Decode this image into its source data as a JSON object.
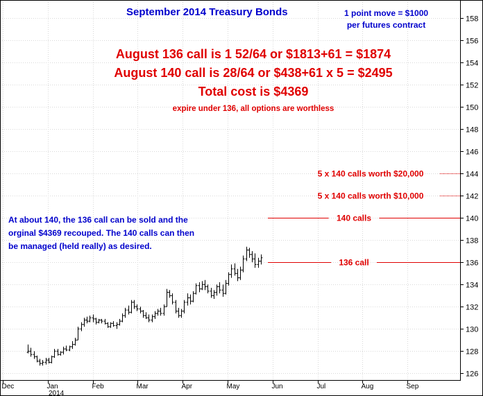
{
  "chart_data": {
    "type": "bar",
    "subtype": "ohlc",
    "title": "September 2014 Treasury Bonds",
    "subtitle_lines": [
      "1 point move = $1000",
      "per futures contract"
    ],
    "x_tick_labels": [
      "Dec",
      "Jan",
      "Feb",
      "Mar",
      "Apr",
      "May",
      "Jun",
      "Jul",
      "Aug",
      "Sep"
    ],
    "year_label": "2014",
    "y_ticks": [
      126,
      128,
      130,
      132,
      134,
      136,
      138,
      140,
      142,
      144,
      146,
      148,
      150,
      152,
      154,
      156,
      158
    ],
    "ylim": [
      125.4,
      159.6
    ],
    "grid": true,
    "y_axis_side": "right",
    "cost_lines": [
      "August 136 call is 1 52/64 or $1813+61 = $1874",
      "August 140 call is 28/64 or $438+61 x 5 = $2495",
      "Total cost is $4369"
    ],
    "expire_note": "expire under 136, all options are worthless",
    "strategy_note_lines": [
      "At about 140, the 136 call can be sold and the",
      "orginal $4369 recouped. The 140 calls can then",
      "be managed (held really) as desired."
    ],
    "annotations": [
      {
        "label": "5 x 140 calls worth $20,000",
        "value": 144,
        "style": "dotted"
      },
      {
        "label": "5 x 140 calls worth $10,000",
        "value": 142,
        "style": "dotted"
      },
      {
        "label": "140 calls",
        "value": 140,
        "style": "solid"
      },
      {
        "label": "136 call",
        "value": 136,
        "style": "solid"
      }
    ],
    "series": [
      {
        "values": [
          [
            0,
            127.9,
            128.6,
            127.8,
            128.0
          ],
          [
            1,
            128.0,
            128.3,
            127.5,
            127.7
          ],
          [
            2,
            127.7,
            128.0,
            127.3,
            127.5
          ],
          [
            3,
            127.5,
            127.6,
            127.0,
            127.1
          ],
          [
            4,
            127.1,
            127.3,
            126.7,
            126.9
          ],
          [
            5,
            126.9,
            127.2,
            126.7,
            127.0
          ],
          [
            6,
            127.0,
            127.4,
            126.8,
            127.2
          ],
          [
            7,
            127.2,
            127.4,
            126.9,
            127.0
          ],
          [
            8,
            127.0,
            127.6,
            126.9,
            127.5
          ],
          [
            9,
            127.5,
            128.2,
            127.4,
            128.0
          ],
          [
            10,
            128.0,
            128.2,
            127.6,
            127.7
          ],
          [
            11,
            127.7,
            128.0,
            127.6,
            127.9
          ],
          [
            12,
            127.9,
            128.4,
            127.7,
            128.2
          ],
          [
            13,
            128.2,
            128.5,
            128.0,
            128.1
          ],
          [
            14,
            128.1,
            128.5,
            128.0,
            128.4
          ],
          [
            15,
            128.4,
            128.9,
            128.2,
            128.6
          ],
          [
            16,
            128.6,
            129.2,
            128.5,
            129.0
          ],
          [
            17,
            129.0,
            130.2,
            129.0,
            130.0
          ],
          [
            18,
            130.0,
            130.6,
            129.8,
            130.4
          ],
          [
            19,
            130.4,
            131.0,
            130.2,
            130.8
          ],
          [
            20,
            130.8,
            131.1,
            130.5,
            130.7
          ],
          [
            21,
            130.7,
            131.2,
            130.6,
            131.0
          ],
          [
            22,
            131.0,
            131.3,
            130.6,
            130.9
          ],
          [
            23,
            130.9,
            131.0,
            130.4,
            130.6
          ],
          [
            24,
            130.6,
            130.9,
            130.5,
            130.8
          ],
          [
            25,
            130.8,
            130.9,
            130.5,
            130.7
          ],
          [
            26,
            130.7,
            130.9,
            130.4,
            130.5
          ],
          [
            27,
            130.5,
            130.6,
            130.1,
            130.2
          ],
          [
            28,
            130.2,
            130.6,
            130.1,
            130.5
          ],
          [
            29,
            130.5,
            130.7,
            130.2,
            130.3
          ],
          [
            30,
            130.3,
            130.6,
            130.0,
            130.4
          ],
          [
            31,
            130.4,
            130.9,
            130.3,
            130.7
          ],
          [
            32,
            130.7,
            131.4,
            130.6,
            131.2
          ],
          [
            33,
            131.2,
            131.9,
            131.0,
            131.7
          ],
          [
            34,
            131.7,
            132.1,
            131.3,
            131.5
          ],
          [
            35,
            131.5,
            132.6,
            131.4,
            132.4
          ],
          [
            36,
            132.4,
            132.6,
            131.8,
            132.0
          ],
          [
            37,
            132.0,
            132.2,
            131.6,
            131.8
          ],
          [
            38,
            131.8,
            132.0,
            131.4,
            131.6
          ],
          [
            39,
            131.6,
            131.7,
            131.0,
            131.2
          ],
          [
            40,
            131.2,
            131.5,
            130.9,
            131.0
          ],
          [
            41,
            131.0,
            131.3,
            130.6,
            130.8
          ],
          [
            42,
            130.8,
            131.3,
            130.6,
            131.1
          ],
          [
            43,
            131.1,
            131.6,
            130.9,
            131.4
          ],
          [
            44,
            131.4,
            131.8,
            131.2,
            131.6
          ],
          [
            45,
            131.6,
            131.9,
            131.2,
            131.4
          ],
          [
            46,
            131.4,
            132.2,
            131.2,
            132.0
          ],
          [
            47,
            132.0,
            133.6,
            132.0,
            133.3
          ],
          [
            48,
            133.3,
            133.5,
            132.8,
            133.0
          ],
          [
            49,
            133.0,
            133.2,
            132.2,
            132.4
          ],
          [
            50,
            132.4,
            132.6,
            131.4,
            131.6
          ],
          [
            51,
            131.6,
            131.9,
            131.0,
            131.2
          ],
          [
            52,
            131.2,
            131.8,
            131.0,
            131.6
          ],
          [
            53,
            131.6,
            132.6,
            131.4,
            132.4
          ],
          [
            54,
            132.4,
            133.2,
            132.1,
            132.8
          ],
          [
            55,
            132.8,
            133.1,
            132.2,
            132.5
          ],
          [
            56,
            132.5,
            133.4,
            132.4,
            133.2
          ],
          [
            57,
            133.2,
            134.1,
            133.1,
            133.9
          ],
          [
            58,
            133.9,
            134.2,
            133.3,
            133.6
          ],
          [
            59,
            133.6,
            134.3,
            133.5,
            134.0
          ],
          [
            60,
            134.0,
            134.4,
            133.5,
            133.8
          ],
          [
            61,
            133.8,
            134.0,
            133.2,
            133.4
          ],
          [
            62,
            133.4,
            133.7,
            132.8,
            133.0
          ],
          [
            63,
            133.0,
            133.5,
            132.7,
            133.3
          ],
          [
            64,
            133.3,
            134.0,
            133.0,
            133.8
          ],
          [
            65,
            133.8,
            134.2,
            133.2,
            133.5
          ],
          [
            66,
            133.5,
            134.0,
            132.9,
            133.2
          ],
          [
            67,
            133.2,
            134.4,
            133.1,
            134.1
          ],
          [
            68,
            134.1,
            135.1,
            133.9,
            134.9
          ],
          [
            69,
            134.9,
            135.8,
            134.6,
            135.4
          ],
          [
            70,
            135.4,
            135.9,
            134.8,
            135.0
          ],
          [
            71,
            135.0,
            135.4,
            134.3,
            134.6
          ],
          [
            72,
            134.6,
            135.6,
            134.4,
            135.3
          ],
          [
            73,
            135.3,
            136.6,
            135.1,
            136.3
          ],
          [
            74,
            136.3,
            137.4,
            136.1,
            137.1
          ],
          [
            75,
            137.1,
            137.3,
            136.4,
            136.7
          ],
          [
            76,
            136.7,
            137.0,
            136.0,
            136.3
          ],
          [
            77,
            136.3,
            136.8,
            135.5,
            135.8
          ],
          [
            78,
            135.8,
            136.4,
            135.5,
            136.1
          ],
          [
            79,
            136.1,
            136.7,
            135.8,
            136.4
          ]
        ]
      }
    ]
  }
}
